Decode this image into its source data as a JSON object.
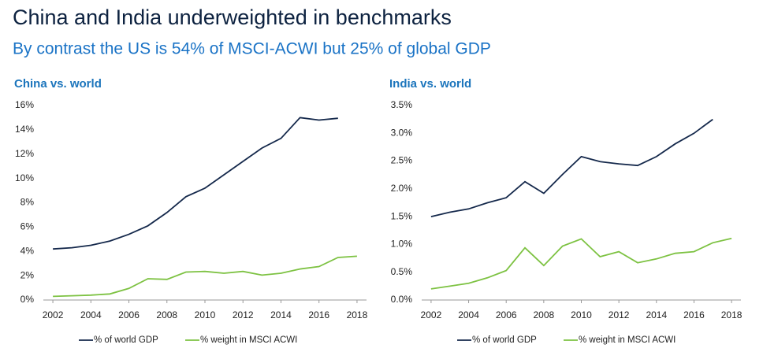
{
  "title": "China and India underweighted in benchmarks",
  "subtitle": "By contrast the US is 54% of MSCI-ACWI but 25% of global GDP",
  "chart_data": [
    {
      "type": "line",
      "title": "China vs. world",
      "x": [
        2002,
        2003,
        2004,
        2005,
        2006,
        2007,
        2008,
        2009,
        2010,
        2011,
        2012,
        2013,
        2014,
        2015,
        2016,
        2017,
        2018
      ],
      "xlim": [
        2001.5,
        2018.5
      ],
      "xticks": [
        2002,
        2004,
        2006,
        2008,
        2010,
        2012,
        2014,
        2016,
        2018
      ],
      "ylim": [
        0,
        16
      ],
      "yticks": [
        {
          "value": 0,
          "label": "0%"
        },
        {
          "value": 2,
          "label": "2%"
        },
        {
          "value": 4,
          "label": "4%"
        },
        {
          "value": 6,
          "label": "6%"
        },
        {
          "value": 8,
          "label": "8%"
        },
        {
          "value": 10,
          "label": "10%"
        },
        {
          "value": 12,
          "label": "12%"
        },
        {
          "value": 14,
          "label": "14%"
        },
        {
          "value": 16,
          "label": "16%"
        }
      ],
      "grid": false,
      "legend": "bottom",
      "series": [
        {
          "name": "% of world GDP",
          "color": "#14284b",
          "values": [
            4.2,
            4.3,
            4.5,
            4.85,
            5.4,
            6.1,
            7.2,
            8.5,
            9.2,
            10.3,
            11.4,
            12.5,
            13.3,
            15.0,
            14.8,
            14.95,
            null
          ]
        },
        {
          "name": "% weight in MSCI ACWI",
          "color": "#7dc242",
          "values": [
            0.3,
            0.35,
            0.4,
            0.5,
            0.95,
            1.75,
            1.7,
            2.3,
            2.35,
            2.2,
            2.35,
            2.05,
            2.2,
            2.55,
            2.75,
            3.5,
            3.6
          ]
        }
      ]
    },
    {
      "type": "line",
      "title": "India vs. world",
      "x": [
        2002,
        2003,
        2004,
        2005,
        2006,
        2007,
        2008,
        2009,
        2010,
        2011,
        2012,
        2013,
        2014,
        2015,
        2016,
        2017,
        2018
      ],
      "xlim": [
        2001.5,
        2018.5
      ],
      "xticks": [
        2002,
        2004,
        2006,
        2008,
        2010,
        2012,
        2014,
        2016,
        2018
      ],
      "ylim": [
        0,
        3.5
      ],
      "yticks": [
        {
          "value": 0,
          "label": "0.0%"
        },
        {
          "value": 0.5,
          "label": "0.5%"
        },
        {
          "value": 1,
          "label": "1.0%"
        },
        {
          "value": 1.5,
          "label": "1.5%"
        },
        {
          "value": 2,
          "label": "2.0%"
        },
        {
          "value": 2.5,
          "label": "2.5%"
        },
        {
          "value": 3,
          "label": "3.0%"
        },
        {
          "value": 3.5,
          "label": "3.5%"
        }
      ],
      "grid": false,
      "legend": "bottom",
      "series": [
        {
          "name": "% of world GDP",
          "color": "#14284b",
          "values": [
            1.5,
            1.58,
            1.64,
            1.75,
            1.84,
            2.13,
            1.92,
            2.26,
            2.58,
            2.49,
            2.45,
            2.42,
            2.58,
            2.81,
            3.0,
            3.25,
            null
          ]
        },
        {
          "name": "% weight in MSCI ACWI",
          "color": "#7dc242",
          "values": [
            0.2,
            0.25,
            0.3,
            0.4,
            0.53,
            0.94,
            0.62,
            0.97,
            1.1,
            0.78,
            0.87,
            0.67,
            0.74,
            0.84,
            0.87,
            1.03,
            1.11
          ]
        }
      ]
    }
  ]
}
